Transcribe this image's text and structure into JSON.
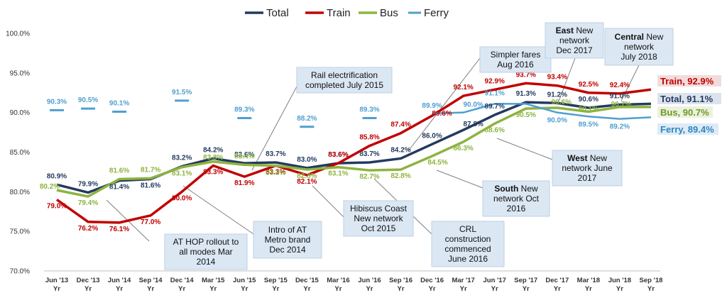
{
  "chart_data": {
    "type": "line",
    "categories": [
      "Jun '13 Yr",
      "Dec '13 Yr",
      "Jun '14 Yr",
      "Sep '14 Yr",
      "Dec '14 Yr",
      "Mar '15 Yr",
      "Jun '15 Yr",
      "Sep '15 Yr",
      "Dec '15 Yr",
      "Mar '16 Yr",
      "Jun '16 Yr",
      "Sep '16 Yr",
      "Dec '16 Yr",
      "Mar '17 Yr",
      "Jun '17 Yr",
      "Sep '17 Yr",
      "Dec '17 Yr",
      "Mar '18 Yr",
      "Jun '18 Yr",
      "Sep '18 Yr"
    ],
    "ylim": [
      70,
      100
    ],
    "yticks": [
      "70.0%",
      "75.0%",
      "80.0%",
      "85.0%",
      "90.0%",
      "95.0%",
      "100.0%"
    ],
    "ytick_values": [
      70,
      75,
      80,
      85,
      90,
      95,
      100
    ],
    "grid": false,
    "legend_position": "top",
    "series": [
      {
        "name": "Total",
        "color": "#243a5e",
        "values": [
          80.9,
          79.9,
          81.4,
          81.6,
          83.2,
          84.2,
          83.6,
          83.7,
          83.0,
          83.6,
          83.7,
          84.2,
          86.0,
          87.8,
          89.7,
          91.3,
          91.2,
          90.6,
          91.0,
          91.1
        ],
        "labels": [
          "80.9%",
          "79.9%",
          "81.4%",
          "81.6%",
          "83.2%",
          "84.2%",
          "83.6%",
          "83.7%",
          "83.0%",
          "83.6%",
          "83.7%",
          "84.2%",
          "86.0%",
          "87.8%",
          "89.7%",
          "91.3%",
          "91.2%",
          "90.6%",
          "91.0%",
          ""
        ]
      },
      {
        "name": "Train",
        "color": "#c00000",
        "values": [
          79.0,
          76.2,
          76.1,
          77.0,
          80.0,
          83.3,
          81.9,
          83.3,
          82.1,
          83.6,
          85.8,
          87.4,
          89.6,
          92.1,
          92.9,
          93.7,
          93.4,
          92.5,
          92.4,
          92.9
        ],
        "labels": [
          "79.0%",
          "76.2%",
          "76.1%",
          "77.0%",
          "80.0%",
          "83.3%",
          "81.9%",
          "83.3%",
          "82.1%",
          "83.6%",
          "85.8%",
          "87.4%",
          "89.6%",
          "92.1%",
          "92.9%",
          "93.7%",
          "93.4%",
          "92.5%",
          "92.4%",
          ""
        ]
      },
      {
        "name": "Bus",
        "color": "#8db33f",
        "values": [
          80.2,
          79.4,
          81.6,
          81.7,
          83.1,
          83.8,
          83.4,
          83.3,
          82.8,
          83.1,
          82.7,
          82.8,
          84.5,
          86.3,
          88.6,
          90.5,
          90.6,
          90.1,
          90.7,
          90.7
        ],
        "labels": [
          "80.2%",
          "79.4%",
          "81.6%",
          "81.7%",
          "83.1%",
          "83.8%",
          "83.4%",
          "83.3%",
          "82.8%",
          "83.1%",
          "82.7%",
          "82.8%",
          "84.5%",
          "86.3%",
          "88.6%",
          "90.5%",
          "90.6%",
          "90.1%",
          "90.7%",
          ""
        ]
      },
      {
        "name": "Ferry",
        "color": "#4f9fd0",
        "values": [
          90.3,
          90.5,
          90.1,
          null,
          91.5,
          null,
          89.3,
          null,
          88.2,
          null,
          89.3,
          null,
          89.9,
          90.0,
          91.1,
          91.1,
          90.0,
          89.5,
          89.2,
          89.4
        ],
        "labels": [
          "90.3%",
          "90.5%",
          "90.1%",
          "",
          "91.5%",
          "",
          "89.3%",
          "",
          "88.2%",
          "",
          "89.3%",
          "",
          "89.9%",
          "90.0%",
          "91.1%",
          "",
          "90.0%",
          "89.5%",
          "89.2%",
          ""
        ]
      }
    ],
    "end_labels": [
      {
        "series": "Train",
        "text": "Train, 92.9%",
        "color": "#c00000",
        "bg": "#f2dcdb"
      },
      {
        "series": "Total",
        "text": "Total, 91.1%",
        "color": "#243a5e",
        "bg": "#dde3ee"
      },
      {
        "series": "Bus",
        "text": "Bus, 90.7%",
        "color": "#6f9a22",
        "bg": "#ebf1de"
      },
      {
        "series": "Ferry",
        "text": "Ferry, 89.4%",
        "color": "#2f86c0",
        "bg": "#deebf7"
      }
    ],
    "annotations": [
      {
        "id": "ferry-hop",
        "lines": [
          {
            "bold": "",
            "text": "AT HOP rollout to"
          },
          {
            "bold": "",
            "text": "all modes Mar"
          },
          {
            "bold": "",
            "text": "2014"
          }
        ],
        "target_index": 2
      },
      {
        "id": "metro",
        "lines": [
          {
            "bold": "",
            "text": "Intro of AT"
          },
          {
            "bold": "",
            "text": "Metro brand"
          },
          {
            "bold": "",
            "text": "Dec 2014"
          }
        ],
        "target_index": 4
      },
      {
        "id": "rail",
        "lines": [
          {
            "bold": "",
            "text": "Rail electrification"
          },
          {
            "bold": "",
            "text": "completed July 2015"
          }
        ],
        "target_index": 7
      },
      {
        "id": "hibiscus",
        "lines": [
          {
            "bold": "",
            "text": "Hibiscus Coast"
          },
          {
            "bold": "",
            "text": "New network"
          },
          {
            "bold": "",
            "text": "Oct 2015"
          }
        ],
        "target_index": 8
      },
      {
        "id": "crl",
        "lines": [
          {
            "bold": "",
            "text": "CRL"
          },
          {
            "bold": "",
            "text": "construction"
          },
          {
            "bold": "",
            "text": "commenced"
          },
          {
            "bold": "",
            "text": "June 2016"
          }
        ],
        "target_index": 10
      },
      {
        "id": "fares",
        "lines": [
          {
            "bold": "",
            "text": "Simpler fares"
          },
          {
            "bold": "",
            "text": "Aug 2016"
          }
        ],
        "target_index": 11
      },
      {
        "id": "south",
        "lines": [
          {
            "bold": "South",
            "text": " New"
          },
          {
            "bold": "",
            "text": "network Oct"
          },
          {
            "bold": "",
            "text": "2016"
          }
        ],
        "target_index": 12
      },
      {
        "id": "west",
        "lines": [
          {
            "bold": "West",
            "text": " New"
          },
          {
            "bold": "",
            "text": "network June"
          },
          {
            "bold": "",
            "text": "2017"
          }
        ],
        "target_index": 14
      },
      {
        "id": "east",
        "lines": [
          {
            "bold": "East",
            "text": " New"
          },
          {
            "bold": "",
            "text": "network"
          },
          {
            "bold": "",
            "text": "Dec 2017"
          }
        ],
        "target_index": 16
      },
      {
        "id": "central",
        "lines": [
          {
            "bold": "Central",
            "text": " New"
          },
          {
            "bold": "",
            "text": "network"
          },
          {
            "bold": "",
            "text": "July 2018"
          }
        ],
        "target_index": 18
      }
    ]
  }
}
